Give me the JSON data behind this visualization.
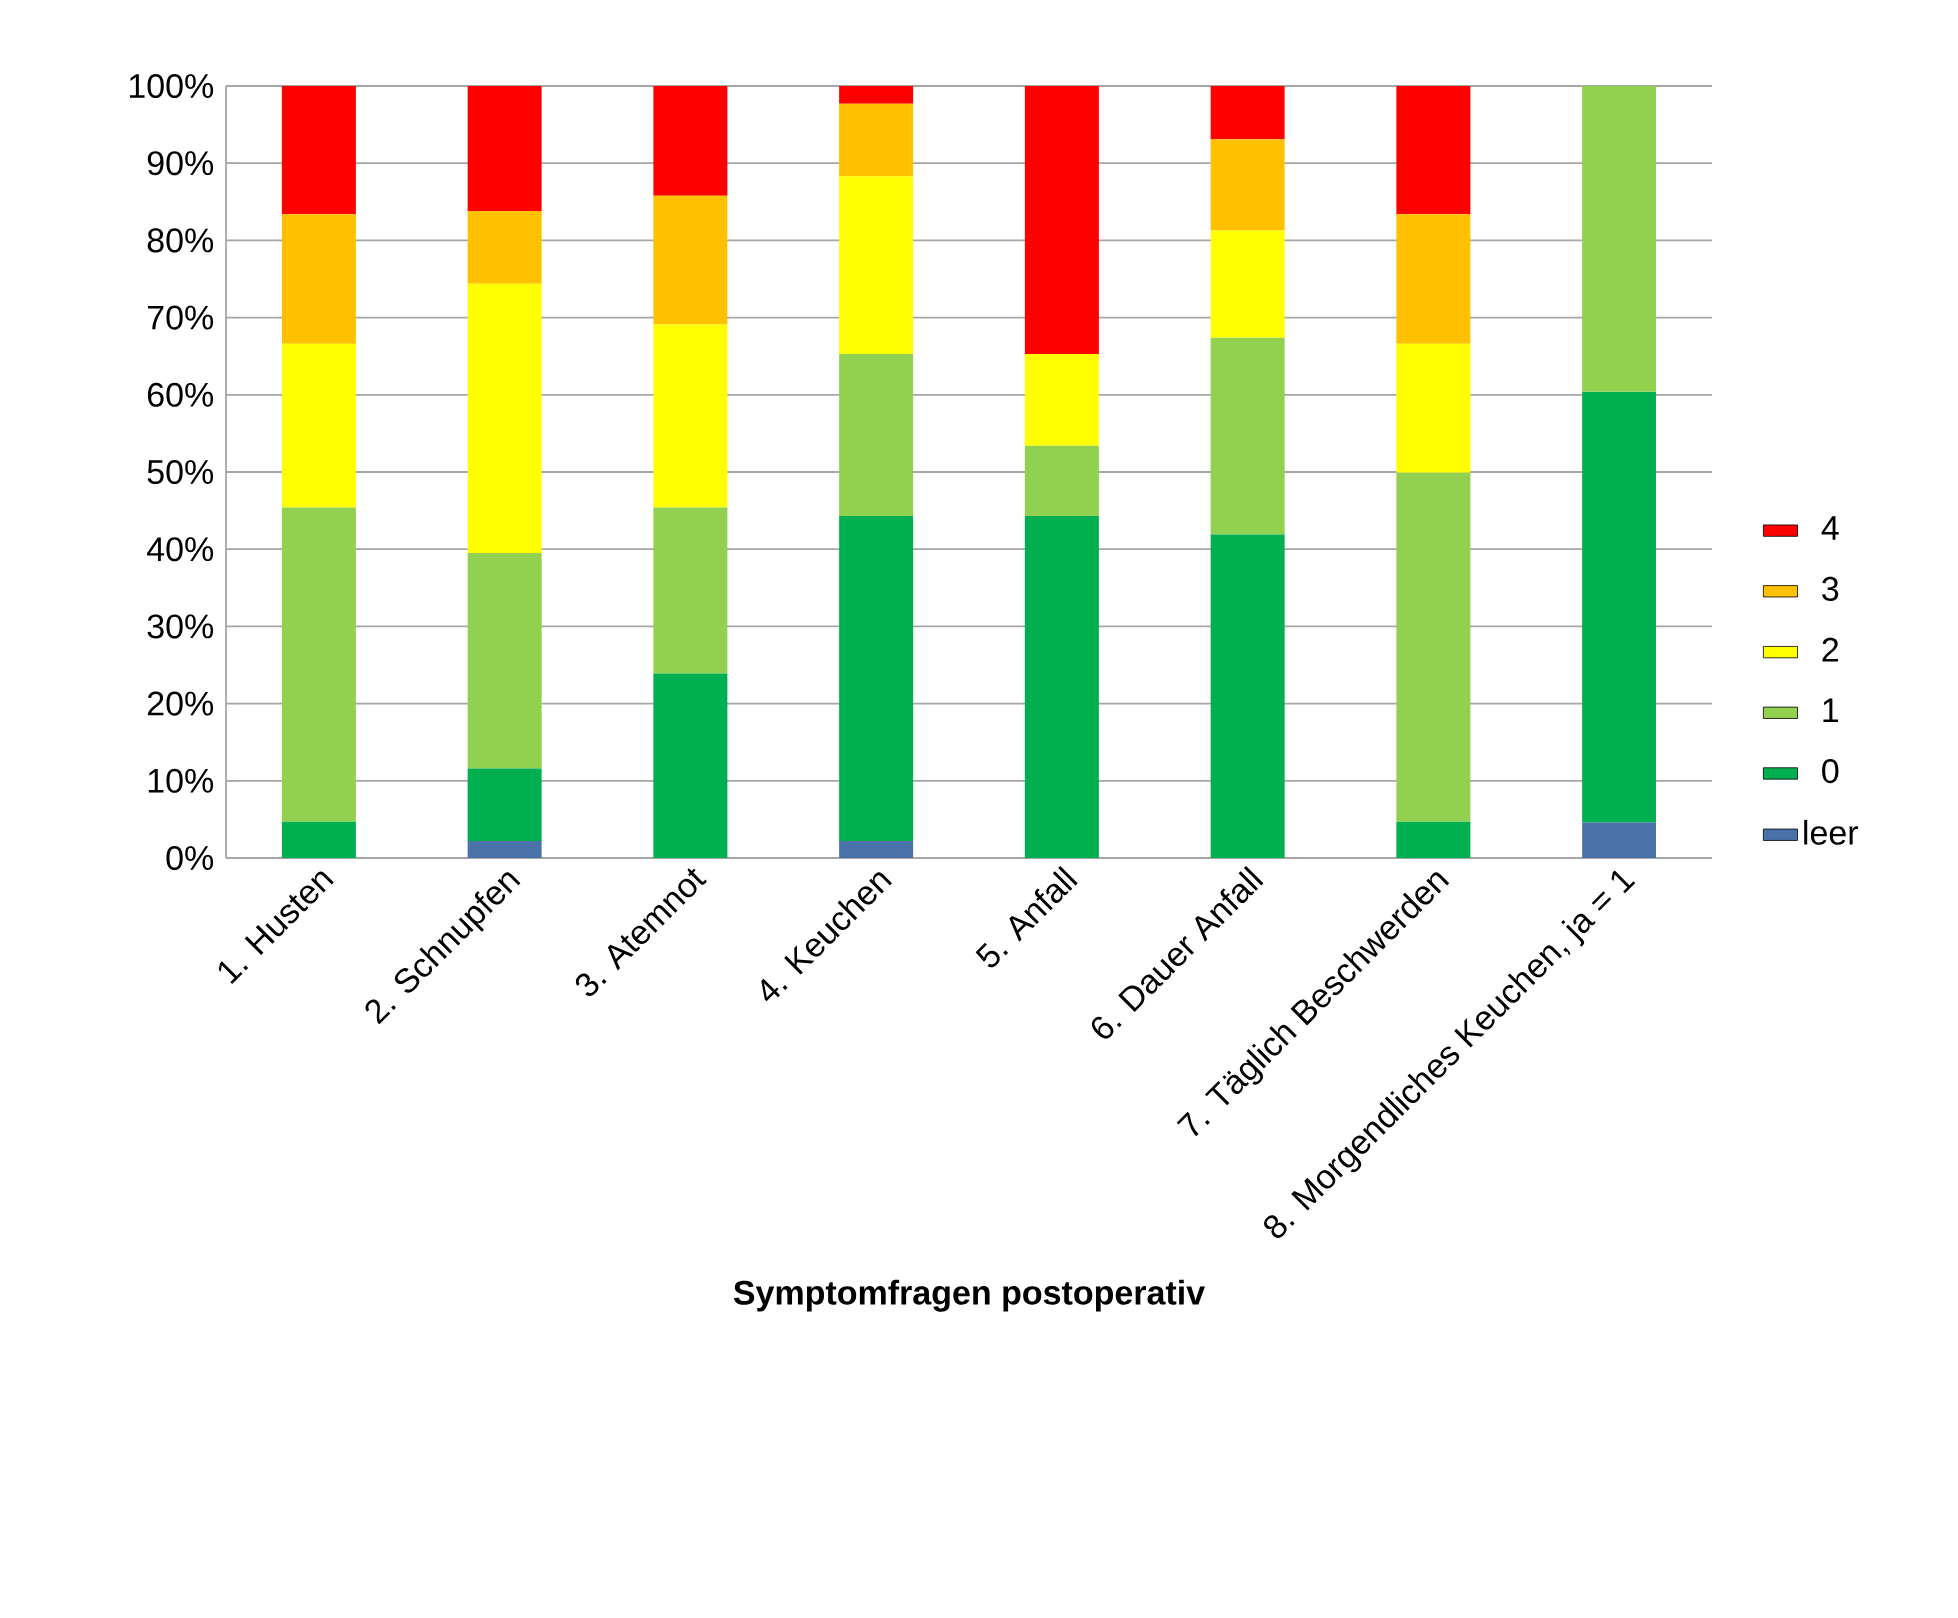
{
  "chart_data": {
    "type": "bar",
    "stacked": true,
    "xlabel": "Symptomfragen postoperativ",
    "categories": [
      "1. Husten",
      "2. Schnupfen",
      "3. Atemnot",
      "4. Keuchen",
      "5. Anfall",
      "6. Dauer Anfall",
      "7. Täglich Beschwerden",
      "8. Morgendliches Keuchen, ja = 1"
    ],
    "series": [
      {
        "name": "leer",
        "color": "#4a72a8",
        "values": [
          0,
          2.2,
          0,
          2.2,
          0,
          0,
          0,
          4.6
        ]
      },
      {
        "name": "0",
        "color": "#00b050",
        "values": [
          4.7,
          9.4,
          23.9,
          42.1,
          44.3,
          41.9,
          4.7,
          55.8
        ]
      },
      {
        "name": "1",
        "color": "#92d050",
        "values": [
          40.7,
          27.9,
          21.5,
          21.0,
          9.1,
          25.5,
          45.2,
          39.6
        ]
      },
      {
        "name": "2",
        "color": "#ffff00",
        "values": [
          21.2,
          34.9,
          23.7,
          23.0,
          11.9,
          13.9,
          16.7,
          0
        ]
      },
      {
        "name": "3",
        "color": "#ffc000",
        "values": [
          16.8,
          9.4,
          16.7,
          9.4,
          0,
          11.8,
          16.8,
          0
        ]
      },
      {
        "name": "4",
        "color": "#ff0000",
        "values": [
          16.6,
          16.2,
          14.2,
          2.3,
          34.7,
          6.9,
          16.6,
          0
        ]
      }
    ],
    "ylim": [
      0,
      100
    ],
    "yticks": [
      {
        "value": 0,
        "label": "0%"
      },
      {
        "value": 10,
        "label": "10%"
      },
      {
        "value": 20,
        "label": "20%"
      },
      {
        "value": 30,
        "label": "30%"
      },
      {
        "value": 40,
        "label": "40%"
      },
      {
        "value": 50,
        "label": "50%"
      },
      {
        "value": 60,
        "label": "60%"
      },
      {
        "value": 70,
        "label": "70%"
      },
      {
        "value": 80,
        "label": "80%"
      },
      {
        "value": 90,
        "label": "90%"
      },
      {
        "value": 100,
        "label": "100%"
      }
    ],
    "grid": "y",
    "legend": "right"
  }
}
